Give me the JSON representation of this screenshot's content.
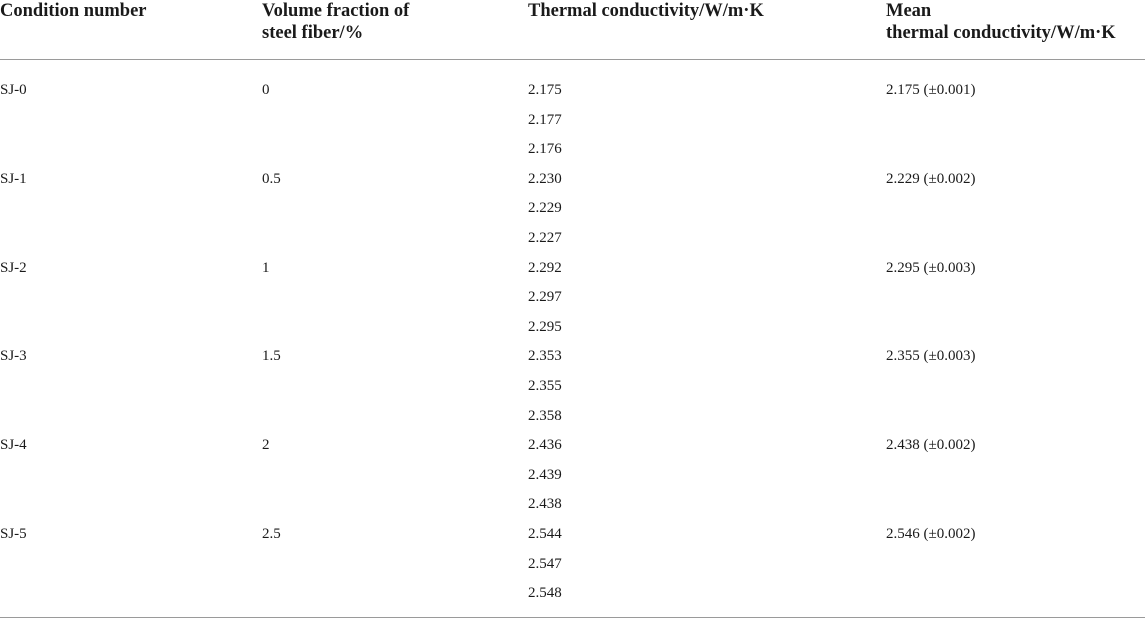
{
  "headers": {
    "condition": "Condition number",
    "volume_line1": "Volume fraction of",
    "volume_line2": "steel fiber/%",
    "thermal": "Thermal conductivity/W/m·K",
    "mean_line1": "Mean",
    "mean_line2": "thermal conductivity/W/m·K"
  },
  "rows": [
    {
      "condition": "SJ-0",
      "volume": "0",
      "values": [
        "2.175",
        "2.177",
        "2.176"
      ],
      "mean": "2.175 (±0.001)"
    },
    {
      "condition": "SJ-1",
      "volume": "0.5",
      "values": [
        "2.230",
        "2.229",
        "2.227"
      ],
      "mean": "2.229 (±0.002)"
    },
    {
      "condition": "SJ-2",
      "volume": "1",
      "values": [
        "2.292",
        "2.297",
        "2.295"
      ],
      "mean": "2.295 (±0.003)"
    },
    {
      "condition": "SJ-3",
      "volume": "1.5",
      "values": [
        "2.353",
        "2.355",
        "2.358"
      ],
      "mean": "2.355 (±0.003)"
    },
    {
      "condition": "SJ-4",
      "volume": "2",
      "values": [
        "2.436",
        "2.439",
        "2.438"
      ],
      "mean": "2.438 (±0.002)"
    },
    {
      "condition": "SJ-5",
      "volume": "2.5",
      "values": [
        "2.544",
        "2.547",
        "2.548"
      ],
      "mean": "2.546 (±0.002)"
    }
  ]
}
